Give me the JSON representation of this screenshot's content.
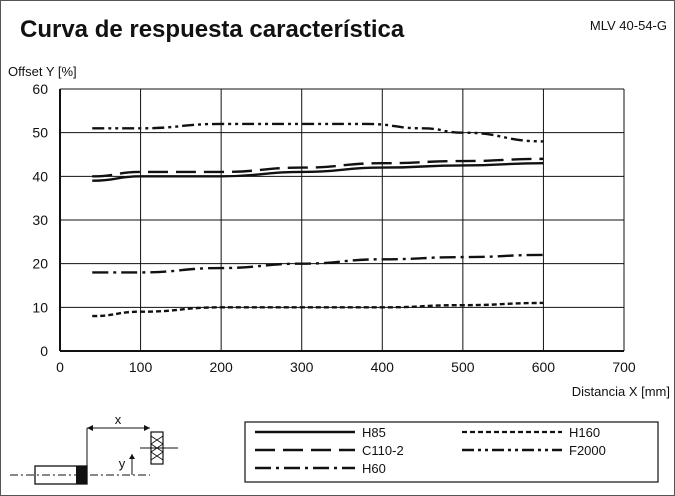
{
  "header": {
    "title": "Curva de respuesta característica",
    "model_code": "MLV 40-54-G"
  },
  "diagram": {
    "x_label": "x",
    "y_label": "y"
  },
  "chart_data": {
    "type": "line",
    "title": "Curva de respuesta característica",
    "xlabel": "Distancia X [mm]",
    "ylabel": "Offset Y [%]",
    "xlim": [
      0,
      700
    ],
    "ylim": [
      0,
      60
    ],
    "xticks": [
      0,
      100,
      200,
      300,
      400,
      500,
      600,
      700
    ],
    "yticks": [
      0,
      10,
      20,
      30,
      40,
      50,
      60
    ],
    "grid": true,
    "legend_position": "bottom-right",
    "series": [
      {
        "name": "H85",
        "style": "solid",
        "x": [
          40,
          100,
          200,
          300,
          400,
          500,
          600
        ],
        "y": [
          39,
          40,
          40,
          41,
          42,
          42.5,
          43
        ]
      },
      {
        "name": "C110-2",
        "style": "longdash",
        "x": [
          40,
          100,
          200,
          300,
          400,
          500,
          600
        ],
        "y": [
          40,
          41,
          41,
          42,
          43,
          43.5,
          44
        ]
      },
      {
        "name": "H60",
        "style": "dashdot",
        "x": [
          40,
          100,
          200,
          300,
          400,
          500,
          600
        ],
        "y": [
          18,
          18,
          19,
          20,
          21,
          21.5,
          22
        ]
      },
      {
        "name": "H160",
        "style": "dotted",
        "x": [
          40,
          100,
          200,
          300,
          400,
          500,
          600
        ],
        "y": [
          8,
          9,
          10,
          10,
          10,
          10.5,
          11
        ]
      },
      {
        "name": "F2000",
        "style": "dashdotdot",
        "x": [
          40,
          100,
          200,
          300,
          380,
          450,
          500,
          600
        ],
        "y": [
          51,
          51,
          52,
          52,
          52,
          51,
          50,
          48
        ]
      }
    ]
  }
}
